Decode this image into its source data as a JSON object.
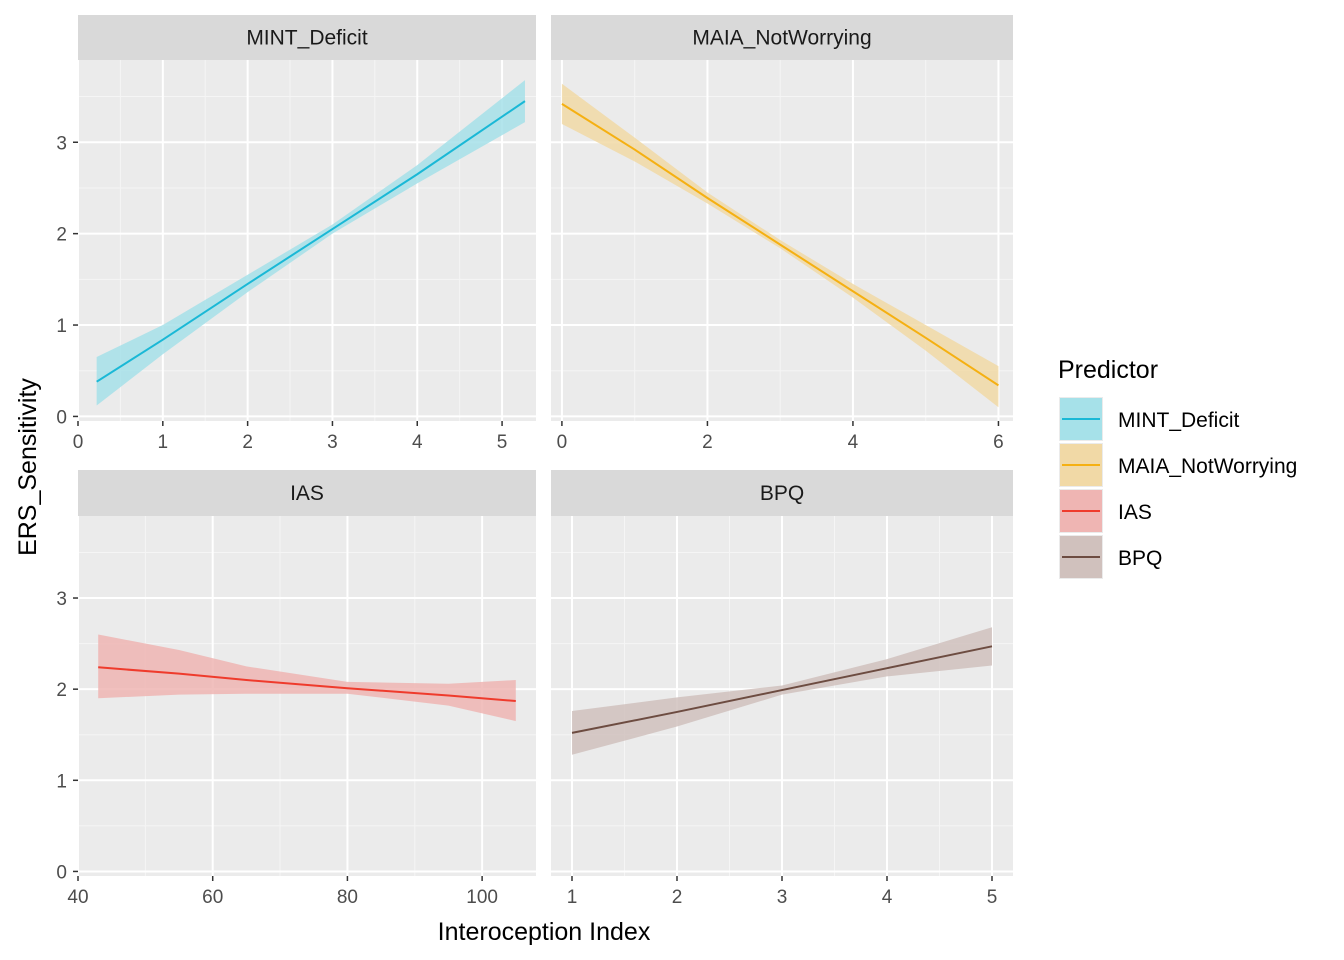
{
  "chart_data": {
    "type": "line",
    "xlabel": "Interoception Index",
    "ylabel": "ERS_Sensitivity",
    "ylim": [
      -0.05,
      3.9
    ],
    "y_ticks": [
      0,
      1,
      2,
      3
    ],
    "grid": true,
    "legend": {
      "title": "Predictor",
      "placement": "right",
      "entries": [
        {
          "name": "MINT_Deficit",
          "line_color": "#1ab8d6",
          "fill_color": "#a6e1e9"
        },
        {
          "name": "MAIA_NotWorrying",
          "line_color": "#f5b012",
          "fill_color": "#f1d9a6"
        },
        {
          "name": "IAS",
          "line_color": "#ef3b2c",
          "fill_color": "#efb5b3"
        },
        {
          "name": "BPQ",
          "line_color": "#6d4c41",
          "fill_color": "#d0c1bd"
        }
      ]
    },
    "panels": [
      {
        "name": "MINT_Deficit",
        "color": "#1ab8d6",
        "band_color": "#a6e1e9",
        "xlim": [
          0,
          5.4
        ],
        "x_ticks": [
          0,
          1,
          2,
          3,
          4,
          5
        ],
        "x_tick_labels": [
          "0",
          "1",
          "2",
          "3",
          "4",
          "5"
        ],
        "x": [
          0.22,
          1.0,
          2.0,
          3.0,
          4.0,
          5.27
        ],
        "y": [
          0.38,
          0.84,
          1.45,
          2.05,
          2.65,
          3.45
        ],
        "lower": [
          0.12,
          0.68,
          1.36,
          2.0,
          2.55,
          3.22
        ],
        "upper": [
          0.65,
          1.0,
          1.55,
          2.1,
          2.75,
          3.68
        ]
      },
      {
        "name": "MAIA_NotWorrying",
        "color": "#f5b012",
        "band_color": "#f1d9a6",
        "xlim": [
          -0.15,
          6.2
        ],
        "x_ticks": [
          0,
          2,
          4,
          6
        ],
        "x_tick_labels": [
          "0",
          "2",
          "4",
          "6"
        ],
        "x": [
          0,
          1,
          2,
          3,
          4,
          5,
          6
        ],
        "y": [
          3.42,
          2.92,
          2.39,
          1.88,
          1.37,
          0.86,
          0.34
        ],
        "lower": [
          3.2,
          2.79,
          2.33,
          1.84,
          1.3,
          0.72,
          0.1
        ],
        "upper": [
          3.64,
          3.05,
          2.45,
          1.93,
          1.45,
          1.0,
          0.55
        ]
      },
      {
        "name": "IAS",
        "color": "#ef3b2c",
        "band_color": "#efb5b3",
        "xlim": [
          40,
          108
        ],
        "x_ticks": [
          40,
          60,
          80,
          100
        ],
        "x_tick_labels": [
          "40",
          "60",
          "80",
          "100"
        ],
        "x": [
          43,
          55,
          65,
          80,
          95,
          105
        ],
        "y": [
          2.24,
          2.17,
          2.1,
          2.01,
          1.93,
          1.87
        ],
        "lower": [
          1.9,
          1.94,
          1.95,
          1.95,
          1.82,
          1.65
        ],
        "upper": [
          2.6,
          2.43,
          2.25,
          2.08,
          2.06,
          2.1
        ]
      },
      {
        "name": "BPQ",
        "color": "#6d4c41",
        "band_color": "#d0c1bd",
        "xlim": [
          0.8,
          5.2
        ],
        "x_ticks": [
          1,
          2,
          3,
          4,
          5
        ],
        "x_tick_labels": [
          "1",
          "2",
          "3",
          "4",
          "5"
        ],
        "x": [
          1,
          2,
          3,
          4,
          5
        ],
        "y": [
          1.52,
          1.75,
          1.99,
          2.23,
          2.47
        ],
        "lower": [
          1.28,
          1.59,
          1.94,
          2.14,
          2.26
        ],
        "upper": [
          1.76,
          1.91,
          2.04,
          2.33,
          2.68
        ]
      }
    ]
  }
}
